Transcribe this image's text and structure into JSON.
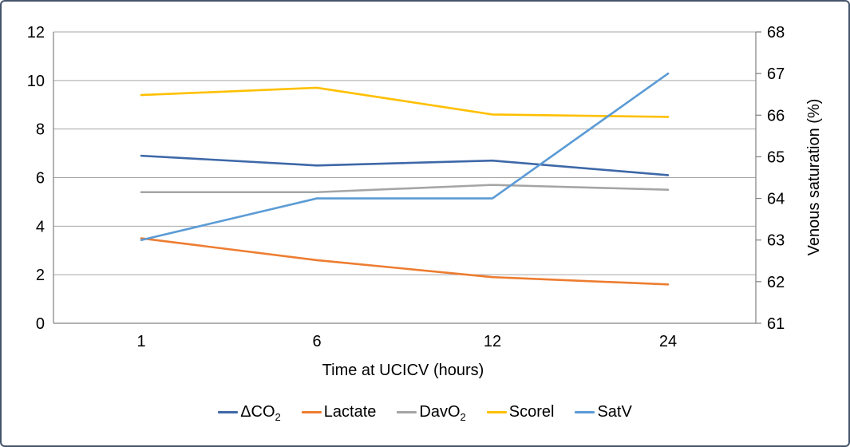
{
  "frame": {
    "border_color": "#44546A",
    "background": "#FFFFFF"
  },
  "chart_data": {
    "type": "line",
    "title": "",
    "xlabel": "Time at UCICV (hours)",
    "ylabel_left": "",
    "ylabel_right": "Venous saturation (%)",
    "x_categories": [
      "1",
      "6",
      "12",
      "24"
    ],
    "left_axis": {
      "min": 0,
      "max": 12,
      "ticks": [
        0,
        2,
        4,
        6,
        8,
        10,
        12
      ]
    },
    "right_axis": {
      "min": 61,
      "max": 68,
      "ticks": [
        61,
        62,
        63,
        64,
        65,
        66,
        67,
        68
      ]
    },
    "grid": true,
    "legend_position": "bottom",
    "series": [
      {
        "id": "dco2",
        "name": "ΔCO₂",
        "axis": "left",
        "color": "#3E68A8",
        "values": [
          6.9,
          6.5,
          6.7,
          6.1
        ]
      },
      {
        "id": "lactate",
        "name": "Lactate",
        "axis": "left",
        "color": "#ED7D31",
        "values": [
          3.5,
          2.6,
          1.9,
          1.6
        ]
      },
      {
        "id": "davo2",
        "name": "DavO₂",
        "axis": "left",
        "color": "#A5A5A5",
        "values": [
          5.4,
          5.4,
          5.7,
          5.5
        ]
      },
      {
        "id": "scorel",
        "name": "Scorel",
        "axis": "left",
        "color": "#FFC000",
        "values": [
          9.4,
          9.7,
          8.6,
          8.5
        ]
      },
      {
        "id": "satv",
        "name": "SatV",
        "axis": "right",
        "color": "#5B9BD5",
        "values": [
          63,
          64,
          64,
          67
        ]
      }
    ],
    "legend": {
      "items": [
        {
          "label": "ΔCO",
          "sub": "2"
        },
        {
          "label": "Lactate",
          "sub": ""
        },
        {
          "label": "DavO",
          "sub": "2"
        },
        {
          "label": "Scorel",
          "sub": ""
        },
        {
          "label": "SatV",
          "sub": ""
        }
      ]
    },
    "colors": {
      "gridline": "#A6A6A6",
      "axis_line": "#808080",
      "tick_text": "#000000"
    }
  }
}
